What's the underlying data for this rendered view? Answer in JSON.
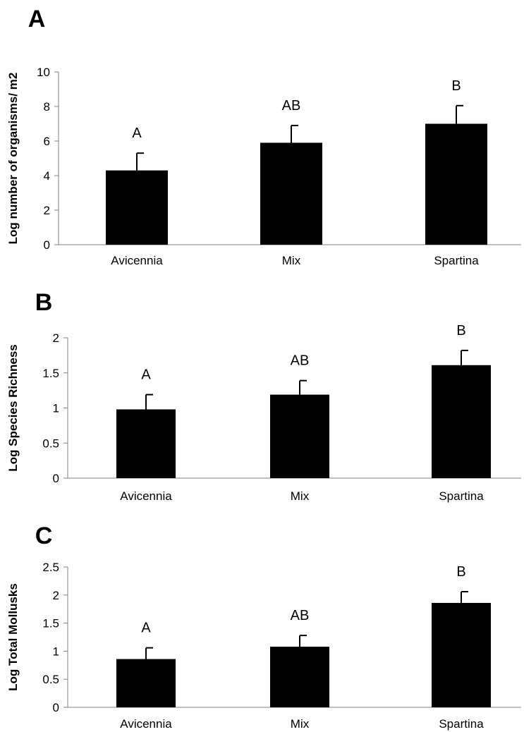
{
  "chart_data": [
    {
      "panel": "A",
      "type": "bar",
      "ylabel": "Log number of organisms/ m2",
      "categories": [
        "Avicennia",
        "Mix",
        "Spartina"
      ],
      "values": [
        4.3,
        5.9,
        7.0
      ],
      "error_plus": [
        1.0,
        1.0,
        1.05
      ],
      "significance_labels": [
        "A",
        "AB",
        "B"
      ],
      "ylim": [
        0,
        10
      ],
      "yticks": [
        0,
        2,
        4,
        6,
        8,
        10
      ],
      "ytick_labels": [
        "0",
        "2",
        "4",
        "6",
        "8",
        "10"
      ],
      "bar_color": "#000000"
    },
    {
      "panel": "B",
      "type": "bar",
      "ylabel": "Log Species Richness",
      "categories": [
        "Avicennia",
        "Mix",
        "Spartina"
      ],
      "values": [
        0.98,
        1.19,
        1.61
      ],
      "error_plus": [
        0.21,
        0.2,
        0.21
      ],
      "significance_labels": [
        "A",
        "AB",
        "B"
      ],
      "ylim": [
        0,
        2
      ],
      "yticks": [
        0,
        0.5,
        1,
        1.5,
        2
      ],
      "ytick_labels": [
        "0",
        "0.5",
        "1",
        "1.5",
        "2"
      ],
      "bar_color": "#000000"
    },
    {
      "panel": "C",
      "type": "bar",
      "ylabel": "Log Total Mollusks",
      "categories": [
        "Avicennia",
        "Mix",
        "Spartina"
      ],
      "values": [
        0.86,
        1.08,
        1.86
      ],
      "error_plus": [
        0.2,
        0.2,
        0.2
      ],
      "significance_labels": [
        "A",
        "AB",
        "B"
      ],
      "ylim": [
        0,
        2.5
      ],
      "yticks": [
        0,
        0.5,
        1,
        1.5,
        2,
        2.5
      ],
      "ytick_labels": [
        "0",
        "0.5",
        "1",
        "1.5",
        "2",
        "2.5"
      ],
      "bar_color": "#000000"
    }
  ]
}
